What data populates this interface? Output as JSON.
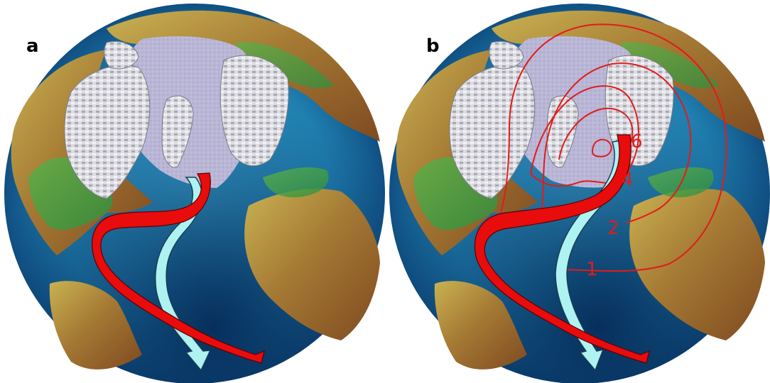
{
  "panels": [
    {
      "label": "a"
    },
    {
      "label": "b",
      "contours": [
        "6",
        "4",
        "2",
        "1"
      ]
    }
  ],
  "colors": {
    "ocean": "#1f7fb0",
    "deep_ocean": "#0d4a7e",
    "ice": "#b9b6d6",
    "glacier": "#e6e6ea",
    "land_low": "#3d9e3d",
    "land_high": "#c9b252",
    "mountain": "#8a4a22",
    "warm_current": "#e80c0c",
    "cold_current": "#aef2f2",
    "contour": "#e21b1b"
  }
}
